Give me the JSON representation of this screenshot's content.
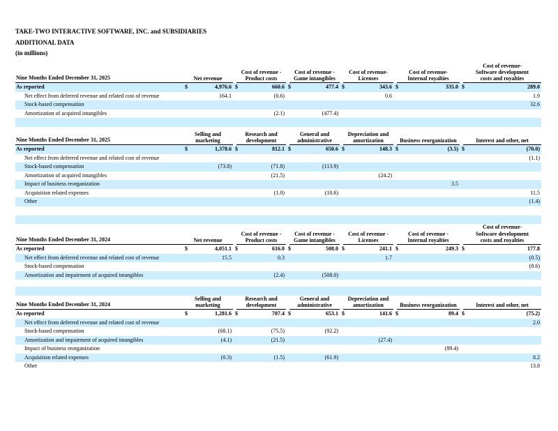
{
  "page": {
    "company": "TAKE-TWO INTERACTIVE SOFTWARE, INC. and SUBSIDIARIES",
    "title": "ADDITIONAL DATA",
    "units": "(in millions)"
  },
  "shade_color": "#cceeff",
  "currency_symbol": "$",
  "tables": [
    {
      "period_label": "Nine Months Ended December 31, 2025",
      "top_band": false,
      "bottom_band": true,
      "columns": [
        {
          "lines": [
            "Net revenue"
          ]
        },
        {
          "lines": [
            "Cost of revenue -",
            "Product costs"
          ]
        },
        {
          "lines": [
            "Cost of revenue -",
            "Game intangibles"
          ]
        },
        {
          "lines": [
            "Cost of revenue-",
            "Licenses"
          ]
        },
        {
          "lines": [
            "Cost of revenue-",
            "Internal royalties"
          ]
        },
        {
          "lines": [
            "Cost of revenue-",
            "Software development",
            "costs and royalties"
          ]
        }
      ],
      "rows": [
        {
          "label": "As reported",
          "bold": true,
          "indent": false,
          "shaded": true,
          "dollar": true,
          "values": [
            "4,976.6",
            "660.6",
            "477.4",
            "343.6",
            "335.0",
            "289.0"
          ]
        },
        {
          "label": "Net effect from deferred revenue and related cost of revenue",
          "bold": false,
          "indent": true,
          "shaded": false,
          "dollar": false,
          "values": [
            "164.1",
            "(0.6)",
            "",
            "0.6",
            "",
            "1.9"
          ]
        },
        {
          "label": "Stock-based compensation",
          "bold": false,
          "indent": true,
          "shaded": true,
          "dollar": false,
          "values": [
            "",
            "",
            "",
            "",
            "",
            "32.6"
          ]
        },
        {
          "label": "Amortization of acquired intangibles",
          "bold": false,
          "indent": true,
          "shaded": false,
          "dollar": false,
          "values": [
            "",
            "(2.1)",
            "(477.4)",
            "",
            "",
            ""
          ]
        }
      ]
    },
    {
      "period_label": "Nine Months Ended December 31, 2025",
      "top_band": false,
      "bottom_band": false,
      "columns": [
        {
          "lines": [
            "Selling and",
            "marketing"
          ]
        },
        {
          "lines": [
            "Research and",
            "development"
          ]
        },
        {
          "lines": [
            "General and",
            "administrative"
          ]
        },
        {
          "lines": [
            "Depreciation and",
            "amortization"
          ]
        },
        {
          "lines": [
            "Business reorganization"
          ]
        },
        {
          "lines": [
            "Interest and other, net"
          ]
        }
      ],
      "rows": [
        {
          "label": "As reported",
          "bold": true,
          "indent": false,
          "shaded": true,
          "dollar": true,
          "values": [
            "1,378.6",
            "812.1",
            "650.6",
            "148.3",
            "(3.5)",
            "(70.0)"
          ]
        },
        {
          "label": "Net effect from deferred revenue and related cost of revenue",
          "bold": false,
          "indent": true,
          "shaded": false,
          "dollar": false,
          "values": [
            "",
            "",
            "",
            "",
            "",
            "(1.1)"
          ]
        },
        {
          "label": "Stock-based compensation",
          "bold": false,
          "indent": true,
          "shaded": true,
          "dollar": false,
          "values": [
            "(73.8)",
            "(71.8)",
            "(113.9)",
            "",
            "",
            ""
          ]
        },
        {
          "label": "Amortization of acquired intangibles",
          "bold": false,
          "indent": true,
          "shaded": false,
          "dollar": false,
          "values": [
            "",
            "(21.5)",
            "",
            "(24.2)",
            "",
            ""
          ]
        },
        {
          "label": "Impact of business reorganization",
          "bold": false,
          "indent": true,
          "shaded": true,
          "dollar": false,
          "values": [
            "",
            "",
            "",
            "",
            "3.5",
            ""
          ]
        },
        {
          "label": "Acquisition related expenses",
          "bold": false,
          "indent": true,
          "shaded": false,
          "dollar": false,
          "values": [
            "",
            "(1.0)",
            "(10.6)",
            "",
            "",
            "11.5"
          ]
        },
        {
          "label": "Other",
          "bold": false,
          "indent": true,
          "shaded": true,
          "dollar": false,
          "values": [
            "",
            "",
            "",
            "",
            "",
            "(1.4)"
          ]
        }
      ]
    },
    {
      "period_label": "Nine Months Ended December 31, 2024",
      "top_band": true,
      "bottom_band": false,
      "columns": [
        {
          "lines": [
            "Net revenue"
          ]
        },
        {
          "lines": [
            "Cost of revenue -",
            "Product costs"
          ]
        },
        {
          "lines": [
            "Cost of revenue -",
            "Game intangibles"
          ]
        },
        {
          "lines": [
            "Cost of revenue -",
            "Licenses"
          ]
        },
        {
          "lines": [
            "Cost of revenue -",
            "Internal royalties"
          ]
        },
        {
          "lines": [
            "Cost of revenue-",
            "Software development",
            "costs and royalties"
          ]
        }
      ],
      "rows": [
        {
          "label": "As reported",
          "bold": true,
          "indent": false,
          "shaded": false,
          "dollar": true,
          "values": [
            "4,051.1",
            "616.0",
            "508.0",
            "241.1",
            "249.3",
            "177.8"
          ]
        },
        {
          "label": "Net effect from deferred revenue and related cost of revenue",
          "bold": false,
          "indent": true,
          "shaded": true,
          "dollar": false,
          "values": [
            "15.5",
            "0.3",
            "",
            "1.7",
            "",
            "(0.5)"
          ]
        },
        {
          "label": "Stock-based compensation",
          "bold": false,
          "indent": true,
          "shaded": false,
          "dollar": false,
          "values": [
            "",
            "",
            "",
            "",
            "",
            "(8.6)"
          ]
        },
        {
          "label": "Amortization and impairment of acquired intangibles",
          "bold": false,
          "indent": true,
          "shaded": true,
          "dollar": false,
          "values": [
            "",
            "(2.4)",
            "(508.0)",
            "",
            "",
            ""
          ]
        }
      ]
    },
    {
      "period_label": "Nine Months Ended December 31, 2024",
      "top_band": true,
      "bottom_band": false,
      "columns": [
        {
          "lines": [
            "Selling and",
            "marketing"
          ]
        },
        {
          "lines": [
            "Research and",
            "development"
          ]
        },
        {
          "lines": [
            "General and",
            "administrative"
          ]
        },
        {
          "lines": [
            "Depreciation and",
            "amortization"
          ]
        },
        {
          "lines": [
            "Business reorganization"
          ]
        },
        {
          "lines": [
            "Interest and other, net"
          ]
        }
      ],
      "rows": [
        {
          "label": "As reported",
          "bold": true,
          "indent": false,
          "shaded": false,
          "dollar": true,
          "values": [
            "1,281.6",
            "707.4",
            "653.1",
            "141.6",
            "89.4",
            "(75.2)"
          ]
        },
        {
          "label": "Net effect from deferred revenue and related cost of revenue",
          "bold": false,
          "indent": true,
          "shaded": true,
          "dollar": false,
          "values": [
            "",
            "",
            "",
            "",
            "",
            "2.0"
          ]
        },
        {
          "label": "Stock-based compensation",
          "bold": false,
          "indent": true,
          "shaded": false,
          "dollar": false,
          "values": [
            "(68.1)",
            "(75.5)",
            "(92.2)",
            "",
            "",
            ""
          ]
        },
        {
          "label": "Amortization and impairment of acquired intangibles",
          "bold": false,
          "indent": true,
          "shaded": true,
          "dollar": false,
          "values": [
            "(4.1)",
            "(21.5)",
            "",
            "(27.4)",
            "",
            ""
          ]
        },
        {
          "label": "Impact of business reorganization",
          "bold": false,
          "indent": true,
          "shaded": false,
          "dollar": false,
          "values": [
            "",
            "",
            "",
            "",
            "(89.4)",
            ""
          ]
        },
        {
          "label": "Acquisition related expenses",
          "bold": false,
          "indent": true,
          "shaded": true,
          "dollar": false,
          "values": [
            "(0.3)",
            "(1.5)",
            "(61.9)",
            "",
            "",
            "8.2"
          ]
        },
        {
          "label": "Other",
          "bold": false,
          "indent": true,
          "shaded": false,
          "dollar": false,
          "values": [
            "",
            "",
            "",
            "",
            "",
            "13.8"
          ]
        }
      ]
    }
  ]
}
